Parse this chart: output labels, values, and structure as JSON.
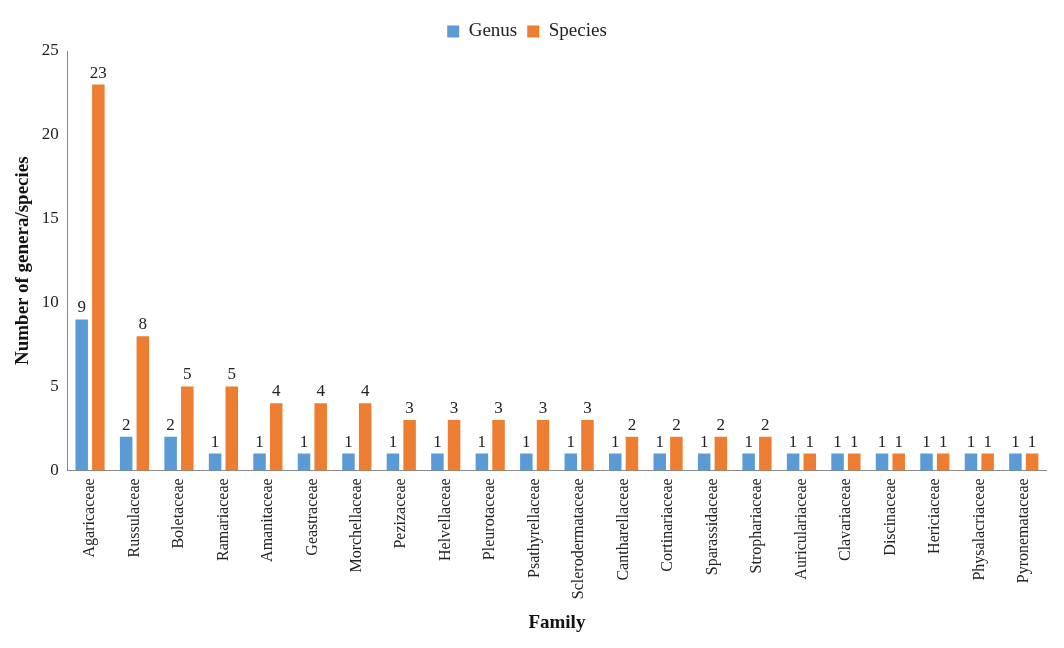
{
  "chart_data": {
    "type": "bar",
    "xlabel": "Family",
    "ylabel": "Number of genera/species",
    "categories": [
      "Agaricaceae",
      "Russulaceae",
      "Boletaceae",
      "Ramariaceae",
      "Amanitaceae",
      "Geastraceae",
      "Morchellaceae",
      "Pezizaceae",
      "Helvellaceae",
      "Pleurotaceae",
      "Psathyrellaceae",
      "Sclerodermataceae",
      "Cantharellaceae",
      "Cortinariaceae",
      "Sparassidaceae",
      "Strophariaceae",
      "Auriculariaceae",
      "Clavariaceae",
      "Discinaceae",
      "Hericiaceae",
      "Physalacriaceae",
      "Pyronemataceae"
    ],
    "series": [
      {
        "name": "Genus",
        "color": "#5b9bd5",
        "values": [
          9,
          2,
          2,
          1,
          1,
          1,
          1,
          1,
          1,
          1,
          1,
          1,
          1,
          1,
          1,
          1,
          1,
          1,
          1,
          1,
          1,
          1
        ]
      },
      {
        "name": "Species",
        "color": "#ed7d31",
        "values": [
          23,
          8,
          5,
          5,
          4,
          4,
          4,
          3,
          3,
          3,
          3,
          3,
          2,
          2,
          2,
          2,
          1,
          1,
          1,
          1,
          1,
          1
        ]
      }
    ],
    "ylim": [
      0,
      25
    ],
    "yticks": [
      0,
      5,
      10,
      15,
      20,
      25
    ],
    "grid": false,
    "legend": "top",
    "data_labels": true
  }
}
